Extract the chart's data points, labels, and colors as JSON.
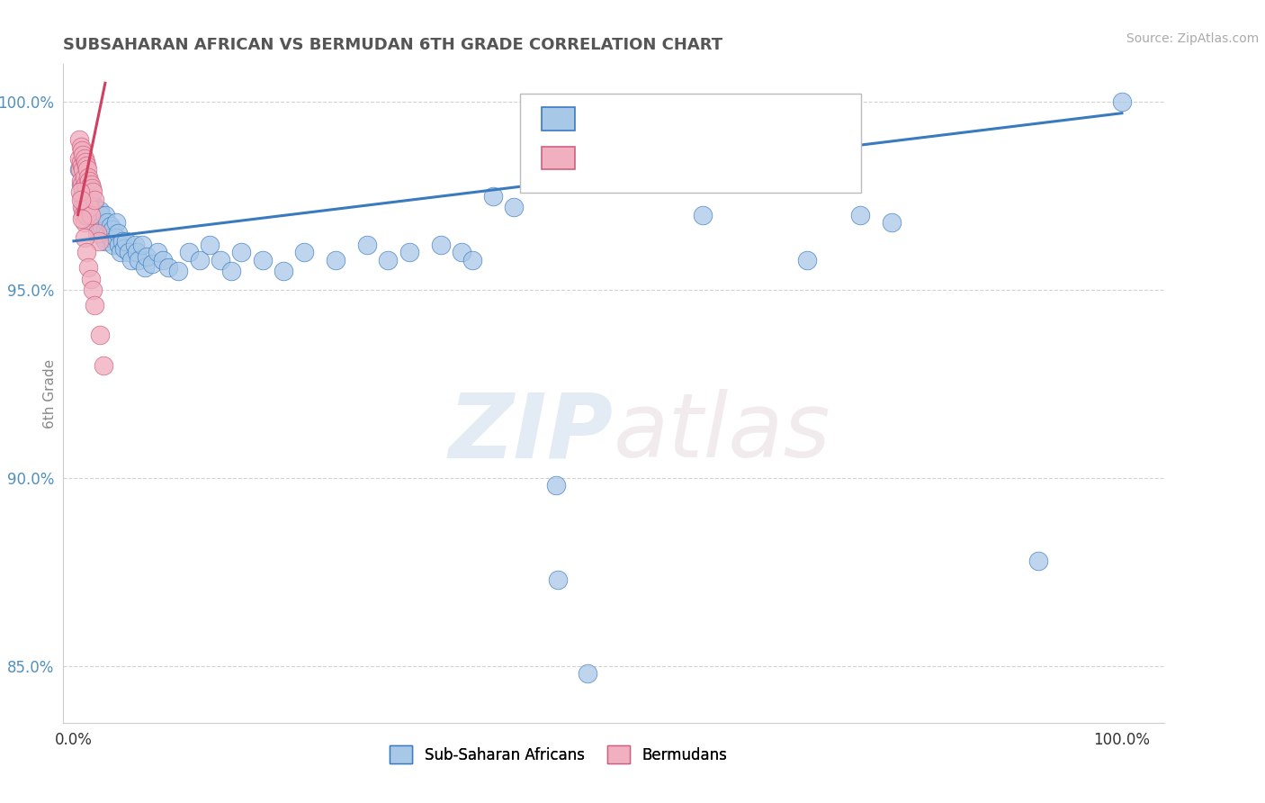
{
  "title": "SUBSAHARAN AFRICAN VS BERMUDAN 6TH GRADE CORRELATION CHART",
  "source_text": "Source: ZipAtlas.com",
  "ylabel": "6th Grade",
  "watermark_zip": "ZIP",
  "watermark_atlas": "atlas",
  "background_color": "#ffffff",
  "grid_color": "#c8c8c8",
  "blue_scatter_color": "#a8c8e8",
  "pink_scatter_color": "#f0b0c0",
  "blue_line_color": "#3a7abf",
  "pink_line_color": "#d04060",
  "ytick_color": "#5090c0",
  "xtick_color": "#333333",
  "blue_scatter": [
    [
      0.005,
      0.982
    ],
    [
      0.007,
      0.978
    ],
    [
      0.008,
      0.975
    ],
    [
      0.009,
      0.972
    ],
    [
      0.01,
      0.98
    ],
    [
      0.01,
      0.976
    ],
    [
      0.012,
      0.974
    ],
    [
      0.013,
      0.978
    ],
    [
      0.014,
      0.972
    ],
    [
      0.015,
      0.97
    ],
    [
      0.015,
      0.974
    ],
    [
      0.016,
      0.971
    ],
    [
      0.017,
      0.968
    ],
    [
      0.018,
      0.973
    ],
    [
      0.018,
      0.969
    ],
    [
      0.02,
      0.972
    ],
    [
      0.02,
      0.968
    ],
    [
      0.022,
      0.97
    ],
    [
      0.023,
      0.967
    ],
    [
      0.024,
      0.965
    ],
    [
      0.025,
      0.971
    ],
    [
      0.025,
      0.968
    ],
    [
      0.026,
      0.97
    ],
    [
      0.027,
      0.967
    ],
    [
      0.028,
      0.964
    ],
    [
      0.03,
      0.97
    ],
    [
      0.03,
      0.966
    ],
    [
      0.03,
      0.963
    ],
    [
      0.032,
      0.968
    ],
    [
      0.033,
      0.965
    ],
    [
      0.035,
      0.967
    ],
    [
      0.035,
      0.964
    ],
    [
      0.037,
      0.966
    ],
    [
      0.038,
      0.962
    ],
    [
      0.04,
      0.968
    ],
    [
      0.04,
      0.964
    ],
    [
      0.042,
      0.965
    ],
    [
      0.043,
      0.962
    ],
    [
      0.045,
      0.96
    ],
    [
      0.046,
      0.963
    ],
    [
      0.048,
      0.961
    ],
    [
      0.05,
      0.963
    ],
    [
      0.052,
      0.96
    ],
    [
      0.055,
      0.958
    ],
    [
      0.058,
      0.962
    ],
    [
      0.06,
      0.96
    ],
    [
      0.062,
      0.958
    ],
    [
      0.065,
      0.962
    ],
    [
      0.068,
      0.956
    ],
    [
      0.07,
      0.959
    ],
    [
      0.075,
      0.957
    ],
    [
      0.08,
      0.96
    ],
    [
      0.085,
      0.958
    ],
    [
      0.09,
      0.956
    ],
    [
      0.1,
      0.955
    ],
    [
      0.11,
      0.96
    ],
    [
      0.12,
      0.958
    ],
    [
      0.13,
      0.962
    ],
    [
      0.14,
      0.958
    ],
    [
      0.15,
      0.955
    ],
    [
      0.16,
      0.96
    ],
    [
      0.18,
      0.958
    ],
    [
      0.2,
      0.955
    ],
    [
      0.22,
      0.96
    ],
    [
      0.25,
      0.958
    ],
    [
      0.28,
      0.962
    ],
    [
      0.3,
      0.958
    ],
    [
      0.32,
      0.96
    ],
    [
      0.35,
      0.962
    ],
    [
      0.37,
      0.96
    ],
    [
      0.38,
      0.958
    ],
    [
      0.4,
      0.975
    ],
    [
      0.42,
      0.972
    ],
    [
      0.6,
      0.97
    ],
    [
      0.7,
      0.958
    ],
    [
      0.75,
      0.97
    ],
    [
      0.78,
      0.968
    ],
    [
      0.92,
      0.878
    ],
    [
      0.46,
      0.898
    ],
    [
      0.462,
      0.873
    ],
    [
      0.49,
      0.848
    ],
    [
      1.0,
      1.0
    ]
  ],
  "pink_scatter": [
    [
      0.005,
      0.99
    ],
    [
      0.005,
      0.985
    ],
    [
      0.006,
      0.982
    ],
    [
      0.007,
      0.988
    ],
    [
      0.007,
      0.984
    ],
    [
      0.007,
      0.979
    ],
    [
      0.008,
      0.987
    ],
    [
      0.008,
      0.983
    ],
    [
      0.008,
      0.978
    ],
    [
      0.008,
      0.972
    ],
    [
      0.009,
      0.986
    ],
    [
      0.009,
      0.982
    ],
    [
      0.009,
      0.977
    ],
    [
      0.009,
      0.97
    ],
    [
      0.01,
      0.985
    ],
    [
      0.01,
      0.98
    ],
    [
      0.01,
      0.975
    ],
    [
      0.01,
      0.968
    ],
    [
      0.011,
      0.984
    ],
    [
      0.011,
      0.978
    ],
    [
      0.011,
      0.972
    ],
    [
      0.012,
      0.983
    ],
    [
      0.012,
      0.977
    ],
    [
      0.012,
      0.97
    ],
    [
      0.013,
      0.982
    ],
    [
      0.013,
      0.975
    ],
    [
      0.014,
      0.98
    ],
    [
      0.014,
      0.973
    ],
    [
      0.015,
      0.979
    ],
    [
      0.015,
      0.972
    ],
    [
      0.016,
      0.978
    ],
    [
      0.016,
      0.97
    ],
    [
      0.017,
      0.977
    ],
    [
      0.018,
      0.976
    ],
    [
      0.02,
      0.974
    ],
    [
      0.022,
      0.965
    ],
    [
      0.024,
      0.963
    ],
    [
      0.006,
      0.976
    ],
    [
      0.007,
      0.974
    ],
    [
      0.008,
      0.969
    ],
    [
      0.01,
      0.964
    ],
    [
      0.012,
      0.96
    ],
    [
      0.014,
      0.956
    ],
    [
      0.016,
      0.953
    ],
    [
      0.018,
      0.95
    ],
    [
      0.02,
      0.946
    ],
    [
      0.025,
      0.938
    ],
    [
      0.028,
      0.93
    ]
  ],
  "blue_trend_x": [
    0.0,
    1.0
  ],
  "blue_trend_y": [
    0.963,
    0.997
  ],
  "pink_trend_x": [
    0.004,
    0.03
  ],
  "pink_trend_y": [
    0.97,
    1.005
  ],
  "ylim": [
    0.835,
    1.01
  ],
  "xlim": [
    -0.01,
    1.04
  ],
  "yticks": [
    0.85,
    0.9,
    0.95,
    1.0
  ],
  "ytick_labels": [
    "85.0%",
    "90.0%",
    "95.0%",
    "100.0%"
  ],
  "xticks": [
    0.0,
    1.0
  ],
  "xtick_labels": [
    "0.0%",
    "100.0%"
  ]
}
